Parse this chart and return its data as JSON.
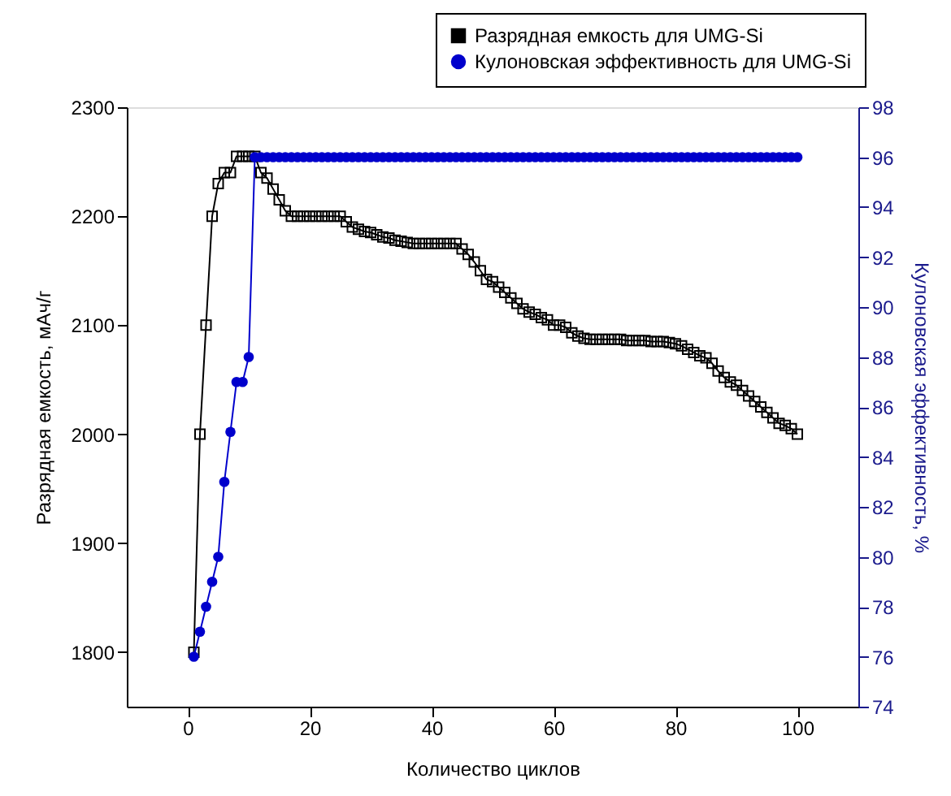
{
  "chart_data": {
    "type": "line",
    "xlabel": "Количество циклов",
    "ylabel": "Разрядная емкость, мАч/г",
    "y2label": "Кулоновская эффективность, %",
    "xlim": [
      -10,
      110
    ],
    "xticks": [
      0,
      20,
      40,
      60,
      80,
      100
    ],
    "ylim": [
      1750,
      2300
    ],
    "yticks": [
      1800,
      1900,
      2000,
      2100,
      2200,
      2300
    ],
    "y2lim": [
      74,
      98
    ],
    "y2ticks": [
      74,
      76,
      78,
      80,
      82,
      84,
      86,
      88,
      90,
      92,
      94,
      96,
      98
    ],
    "grid": false,
    "legend": "top right",
    "x": [
      1,
      2,
      3,
      4,
      5,
      6,
      7,
      8,
      9,
      10,
      11,
      12,
      13,
      14,
      15,
      16,
      17,
      18,
      19,
      20,
      21,
      22,
      23,
      24,
      25,
      26,
      27,
      28,
      29,
      30,
      31,
      32,
      33,
      34,
      35,
      36,
      37,
      38,
      39,
      40,
      41,
      42,
      43,
      44,
      45,
      46,
      47,
      48,
      49,
      50,
      51,
      52,
      53,
      54,
      55,
      56,
      57,
      58,
      59,
      60,
      61,
      62,
      63,
      64,
      65,
      66,
      67,
      68,
      69,
      70,
      71,
      72,
      73,
      74,
      75,
      76,
      77,
      78,
      79,
      80,
      81,
      82,
      83,
      84,
      85,
      86,
      87,
      88,
      89,
      90,
      91,
      92,
      93,
      94,
      95,
      96,
      97,
      98,
      99,
      100
    ],
    "series": [
      {
        "name": "Разрядная емкость для UMG-Si",
        "color": "#000000",
        "marker": "square",
        "values": [
          1800,
          2000,
          2100,
          2200,
          2230,
          2240,
          2240,
          2255,
          2255,
          2255,
          2255,
          2240,
          2235,
          2225,
          2215,
          2205,
          2200,
          2200,
          2200,
          2200,
          2200,
          2200,
          2200,
          2200,
          2200,
          2195,
          2190,
          2188,
          2186,
          2185,
          2183,
          2181,
          2180,
          2178,
          2177,
          2176,
          2175,
          2175,
          2175,
          2175,
          2175,
          2175,
          2175,
          2175,
          2170,
          2165,
          2158,
          2150,
          2142,
          2140,
          2135,
          2130,
          2125,
          2120,
          2115,
          2112,
          2110,
          2107,
          2105,
          2100,
          2100,
          2098,
          2093,
          2090,
          2088,
          2087,
          2087,
          2087,
          2087,
          2087,
          2087,
          2086,
          2086,
          2086,
          2086,
          2085,
          2085,
          2085,
          2084,
          2083,
          2081,
          2078,
          2075,
          2072,
          2070,
          2065,
          2058,
          2052,
          2048,
          2045,
          2040,
          2035,
          2030,
          2025,
          2020,
          2015,
          2010,
          2008,
          2005,
          2000
        ]
      },
      {
        "name": "Кулоновская эффективность для UMG-Si",
        "color": "#0000cc",
        "marker": "circle",
        "axis": "y2",
        "values": [
          76,
          77,
          78,
          79,
          80,
          83,
          85,
          87,
          87,
          88,
          96,
          96,
          96,
          96,
          96,
          96,
          96,
          96,
          96,
          96,
          96,
          96,
          96,
          96,
          96,
          96,
          96,
          96,
          96,
          96,
          96,
          96,
          96,
          96,
          96,
          96,
          96,
          96,
          96,
          96,
          96,
          96,
          96,
          96,
          96,
          96,
          96,
          96,
          96,
          96,
          96,
          96,
          96,
          96,
          96,
          96,
          96,
          96,
          96,
          96,
          96,
          96,
          96,
          96,
          96,
          96,
          96,
          96,
          96,
          96,
          96,
          96,
          96,
          96,
          96,
          96,
          96,
          96,
          96,
          96,
          96,
          96,
          96,
          96,
          96,
          96,
          96,
          96,
          96,
          96,
          96,
          96,
          96,
          96,
          96,
          96,
          96,
          96,
          96,
          96
        ]
      }
    ]
  }
}
